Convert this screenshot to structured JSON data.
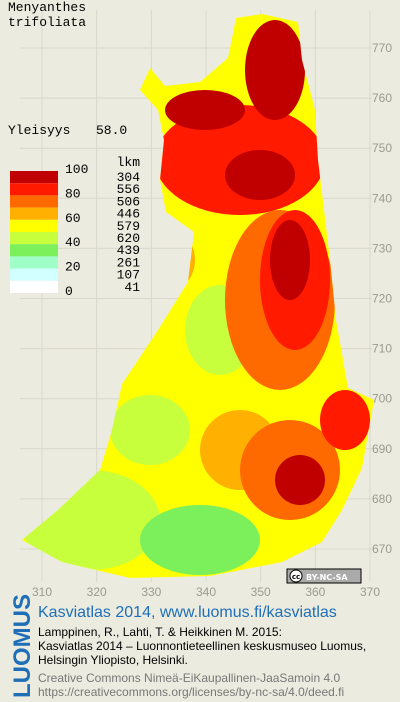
{
  "species": [
    "Menyanthes",
    "trifoliata"
  ],
  "frequency": {
    "label": "Yleisyys",
    "value": "58.0"
  },
  "legend": {
    "header": "lkm",
    "scale_labels": [
      100,
      80,
      60,
      40,
      20,
      0
    ],
    "classes": [
      {
        "color": "#c00000",
        "count": 304
      },
      {
        "color": "#ff1a00",
        "count": 556
      },
      {
        "color": "#ff6a00",
        "count": 506
      },
      {
        "color": "#ffb000",
        "count": 446
      },
      {
        "color": "#ffff00",
        "count": 579
      },
      {
        "color": "#c8ff3c",
        "count": 620
      },
      {
        "color": "#7cf05a",
        "count": 439
      },
      {
        "color": "#a0ffc8",
        "count": 261
      },
      {
        "color": "#d2ffff",
        "count": 107
      },
      {
        "color": "#ffffff",
        "count": 41
      }
    ]
  },
  "grid_north": [
    770,
    760,
    750,
    740,
    730,
    720,
    710,
    700,
    690,
    680,
    670
  ],
  "grid_east": [
    310,
    320,
    330,
    340,
    350,
    360,
    370
  ],
  "license_badge": {
    "icon": "cc",
    "text": "BY-NC-SA"
  },
  "credits": {
    "brand": "LUOMUS",
    "link": "Kasviatlas 2014, www.luomus.fi/kasviatlas",
    "citation": [
      "Lamppinen, R., Lahti, T. & Heikkinen M. 2015:",
      "Kasviatlas 2014 – Luonnontieteellinen keskusmuseo Luomus,",
      "Helsingin Yliopisto, Helsinki."
    ],
    "license": [
      "Creative Commons Nimeä-EiKaupallinen-JaaSamoin 4.0",
      "https://creativecommons.org/licenses/by-nc-sa/4.0/deed.fi"
    ]
  }
}
